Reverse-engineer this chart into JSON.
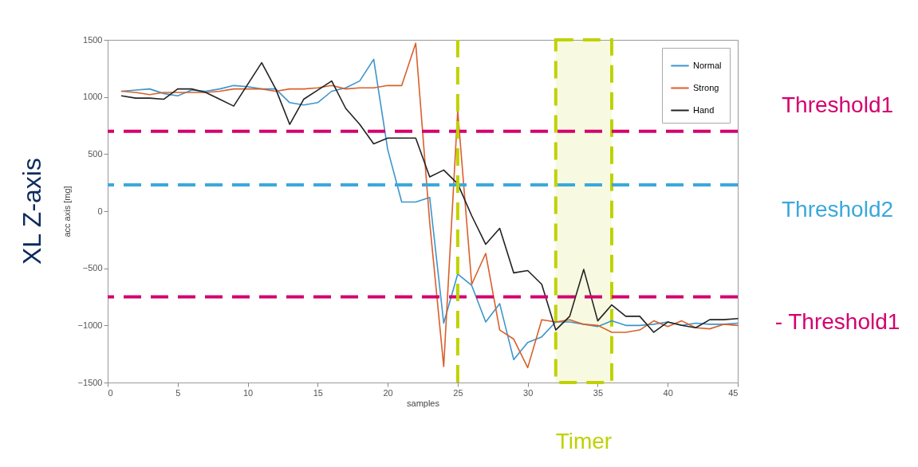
{
  "chart_data": {
    "type": "line",
    "title": "XL Z-axis",
    "xlabel": "samples",
    "ylabel": "acc axis [mg]",
    "x": [
      1,
      2,
      3,
      4,
      5,
      6,
      7,
      8,
      9,
      10,
      11,
      12,
      13,
      14,
      15,
      16,
      17,
      18,
      19,
      20,
      21,
      22,
      23,
      24,
      25,
      26,
      27,
      28,
      29,
      30,
      31,
      32,
      33,
      34,
      35,
      36,
      37,
      38,
      39,
      40,
      41,
      42,
      43,
      44,
      45
    ],
    "series": [
      {
        "name": "Normal",
        "color": "#3b95cc",
        "values": [
          1050,
          1060,
          1070,
          1030,
          1010,
          1060,
          1050,
          1070,
          1100,
          1090,
          1070,
          1070,
          950,
          930,
          950,
          1050,
          1080,
          1140,
          1330,
          540,
          80,
          80,
          120,
          -980,
          -550,
          -650,
          -970,
          -810,
          -1300,
          -1150,
          -1100,
          -970,
          -970,
          -990,
          -1010,
          -960,
          -1000,
          -1000,
          -990,
          -970,
          -1000,
          -980,
          -990,
          -990,
          -980
        ]
      },
      {
        "name": "Strong",
        "color": "#d95f2b",
        "values": [
          1050,
          1040,
          1020,
          1040,
          1040,
          1040,
          1040,
          1050,
          1070,
          1070,
          1070,
          1050,
          1070,
          1070,
          1080,
          1100,
          1070,
          1080,
          1080,
          1100,
          1100,
          1470,
          -100,
          -1360,
          880,
          -640,
          -370,
          -1040,
          -1120,
          -1370,
          -950,
          -970,
          -950,
          -990,
          -1000,
          -1060,
          -1060,
          -1040,
          -960,
          -1010,
          -960,
          -1020,
          -1030,
          -990,
          -1000
        ]
      },
      {
        "name": "Hand",
        "color": "#222222",
        "values": [
          1010,
          990,
          990,
          980,
          1070,
          1070,
          1040,
          980,
          920,
          1110,
          1300,
          1070,
          760,
          980,
          1060,
          1140,
          900,
          760,
          590,
          640,
          640,
          640,
          300,
          360,
          240,
          -40,
          -290,
          -150,
          -540,
          -520,
          -640,
          -1040,
          -920,
          -510,
          -960,
          -820,
          -920,
          -920,
          -1060,
          -970,
          -1000,
          -1020,
          -950,
          -950,
          -940
        ]
      }
    ],
    "xlim": [
      0,
      45
    ],
    "xticks": [
      0,
      5,
      10,
      15,
      20,
      25,
      30,
      35,
      40,
      45
    ],
    "ylim": [
      -1500,
      1500
    ],
    "yticks": [
      -1500,
      -1000,
      -500,
      0,
      500,
      1000,
      1500
    ],
    "grid": false,
    "legend": "top right",
    "marker": "none",
    "line_style": "solid",
    "ref_lines": [
      {
        "axis": "y",
        "value": 700,
        "label": "Threshold1",
        "color": "#d4006e",
        "line_style": "dashed"
      },
      {
        "axis": "y",
        "value": 230,
        "label": "Threshold2",
        "color": "#3aa8dc",
        "line_style": "dashed"
      },
      {
        "axis": "y",
        "value": -750,
        "label": "- Threshold1",
        "color": "#d4006e",
        "line_style": "dashed"
      },
      {
        "axis": "x",
        "value": 25,
        "label": null,
        "color": "#bfd200",
        "line_style": "dashed"
      }
    ],
    "bands": [
      {
        "axis": "x",
        "from": 32,
        "to": 36,
        "label": "Timer",
        "color": "#bfd200"
      }
    ]
  }
}
